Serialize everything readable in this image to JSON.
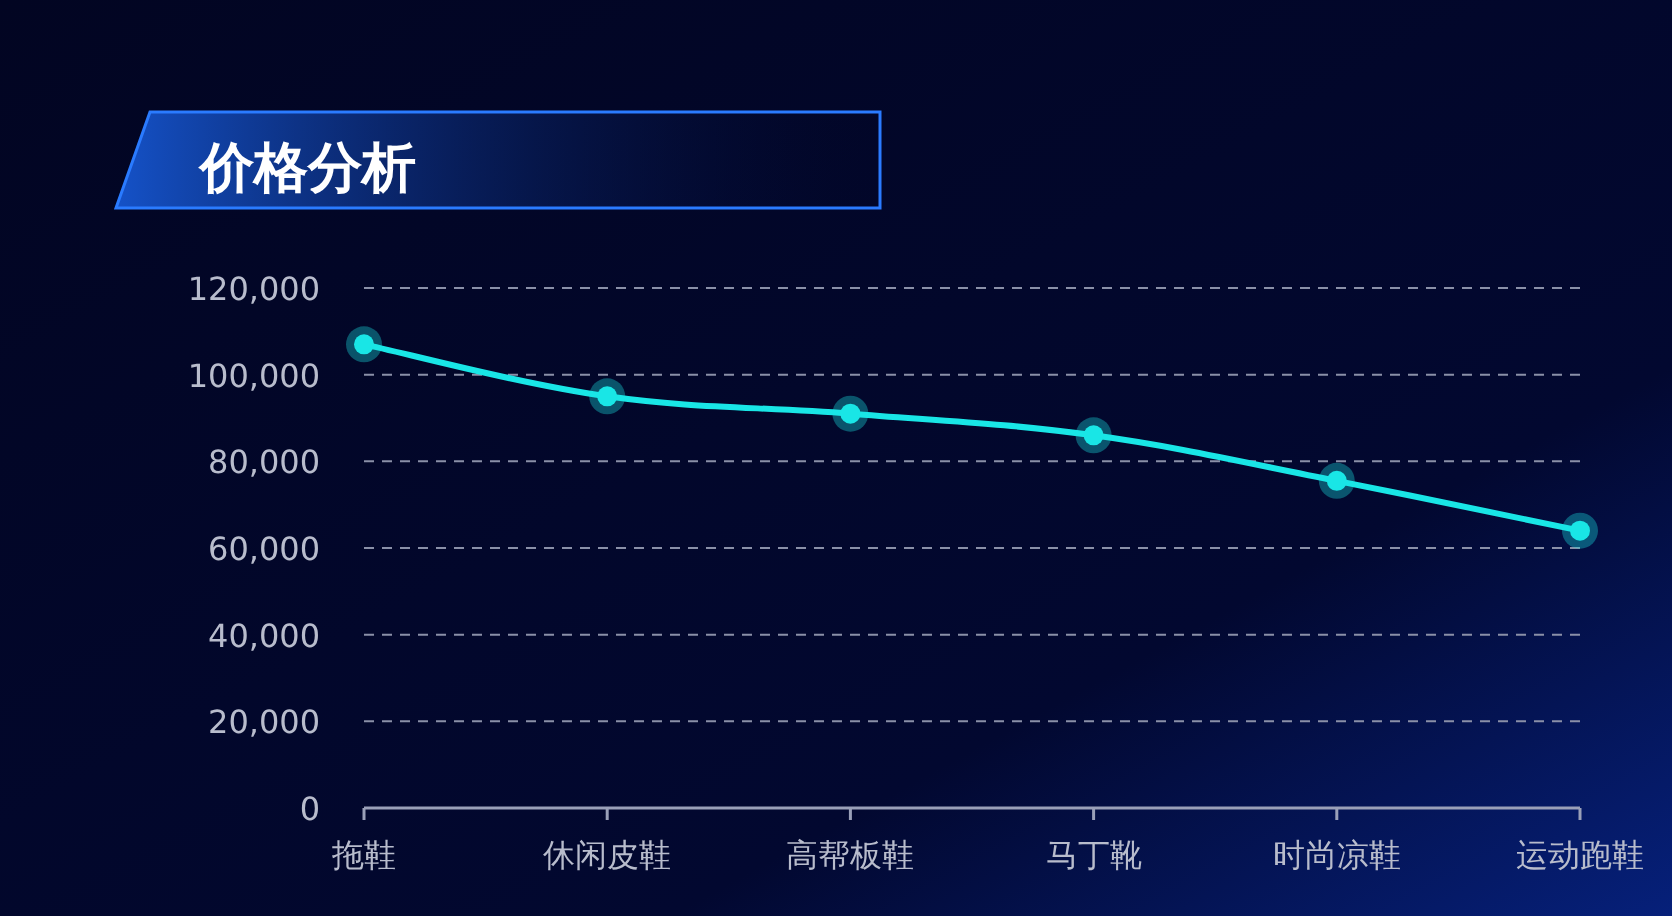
{
  "chart_data": {
    "type": "line",
    "title": "价格分析",
    "categories": [
      "拖鞋",
      "休闲皮鞋",
      "高帮板鞋",
      "马丁靴",
      "时尚凉鞋",
      "运动跑鞋"
    ],
    "series": [
      {
        "color": "#19e6e6",
        "values": [
          107000,
          95000,
          91000,
          86000,
          75500,
          64000
        ]
      }
    ],
    "ylim": [
      0,
      120000
    ],
    "yticks": [
      {
        "value": 0,
        "label": "0"
      },
      {
        "value": 20000,
        "label": "20,000"
      },
      {
        "value": 40000,
        "label": "40,000"
      },
      {
        "value": 60000,
        "label": "60,000"
      },
      {
        "value": 80000,
        "label": "80,000"
      },
      {
        "value": 100000,
        "label": "100,000"
      },
      {
        "value": 120000,
        "label": "120,000"
      }
    ],
    "grid": "y",
    "marker": "circle",
    "line_style": "solid"
  }
}
